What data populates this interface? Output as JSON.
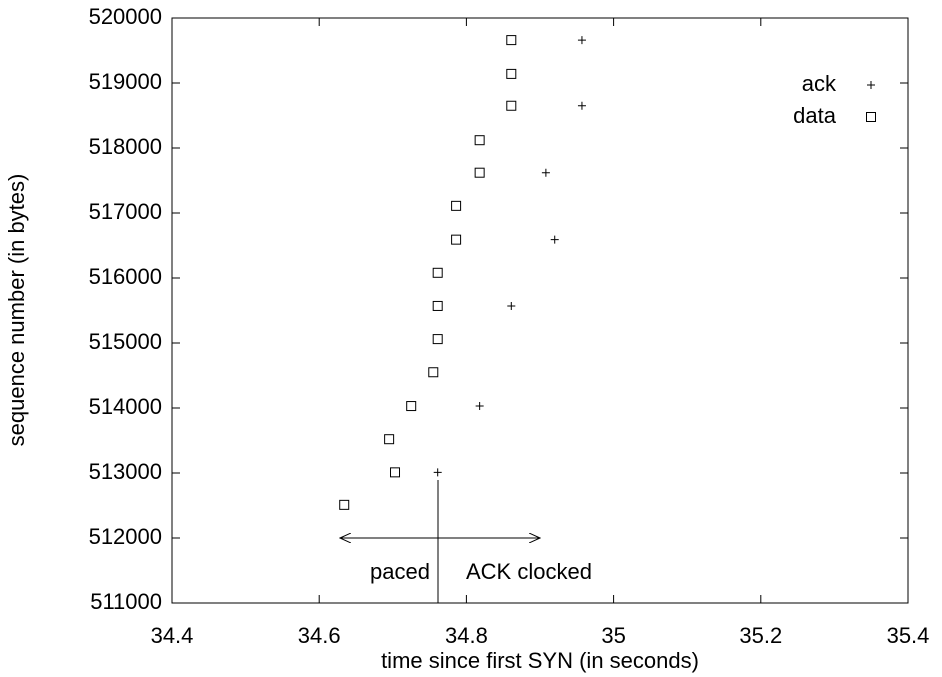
{
  "chart_data": {
    "type": "scatter",
    "x_label": "time since first SYN (in seconds)",
    "y_label": "sequence number (in bytes)",
    "xlim": [
      34.4,
      35.4
    ],
    "xticks": [
      34.4,
      34.6,
      34.8,
      35,
      35.2,
      35.4
    ],
    "ylim": [
      511000,
      520000
    ],
    "yticks": [
      511000,
      512000,
      513000,
      514000,
      515000,
      516000,
      517000,
      518000,
      519000,
      520000
    ],
    "legend": "top-right",
    "series": [
      {
        "name": "ack",
        "color": "#000000",
        "marker": "plus",
        "x": [
          34.761,
          34.818,
          34.861,
          34.92,
          34.908,
          34.957,
          34.957
        ],
        "values": [
          513010,
          514030,
          515570,
          516590,
          517620,
          518650,
          519660
        ]
      },
      {
        "name": "data",
        "color": "#000000",
        "marker": "square",
        "x": [
          34.634,
          34.703,
          34.695,
          34.725,
          34.755,
          34.761,
          34.761,
          34.761,
          34.786,
          34.786,
          34.818,
          34.818,
          34.861,
          34.861,
          34.861
        ],
        "values": [
          512510,
          513010,
          513520,
          514030,
          514550,
          515060,
          515570,
          516080,
          516590,
          517110,
          517620,
          518120,
          518650,
          519140,
          519660
        ]
      }
    ],
    "annotations": [
      "paced",
      "ACK clocked"
    ]
  }
}
